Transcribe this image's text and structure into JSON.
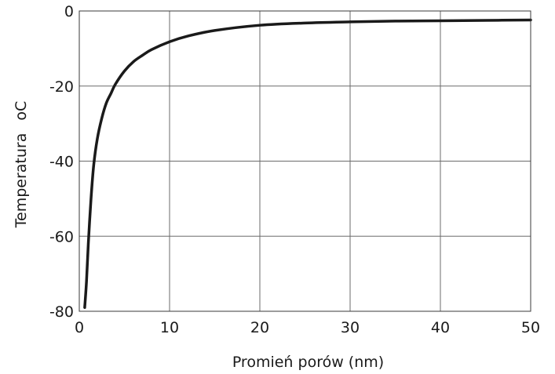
{
  "chart_data": {
    "type": "line",
    "title": "",
    "xlabel": "Promień porów (nm)",
    "ylabel": "Temperatura",
    "ylabel_unit": "oC",
    "xlim": [
      0,
      50
    ],
    "ylim": [
      -80,
      0
    ],
    "x_ticks": [
      0,
      10,
      20,
      30,
      40,
      50
    ],
    "y_ticks": [
      0,
      -20,
      -40,
      -60,
      -80
    ],
    "grid": true,
    "legend": "none",
    "line_color": "#1a1a1a",
    "series": [
      {
        "x": [
          0.6,
          0.8,
          1,
          1.3,
          1.6,
          2,
          2.5,
          3,
          3.5,
          4,
          5,
          6,
          7,
          8,
          10,
          12,
          15,
          20,
          25,
          30,
          35,
          40,
          45,
          50
        ],
        "y": [
          -79,
          -72,
          -62,
          -50,
          -41,
          -34,
          -28.5,
          -24.5,
          -22,
          -19.5,
          -16,
          -13.5,
          -11.8,
          -10.3,
          -8.2,
          -6.7,
          -5.2,
          -3.8,
          -3.2,
          -2.9,
          -2.7,
          -2.6,
          -2.5,
          -2.4
        ]
      }
    ]
  }
}
